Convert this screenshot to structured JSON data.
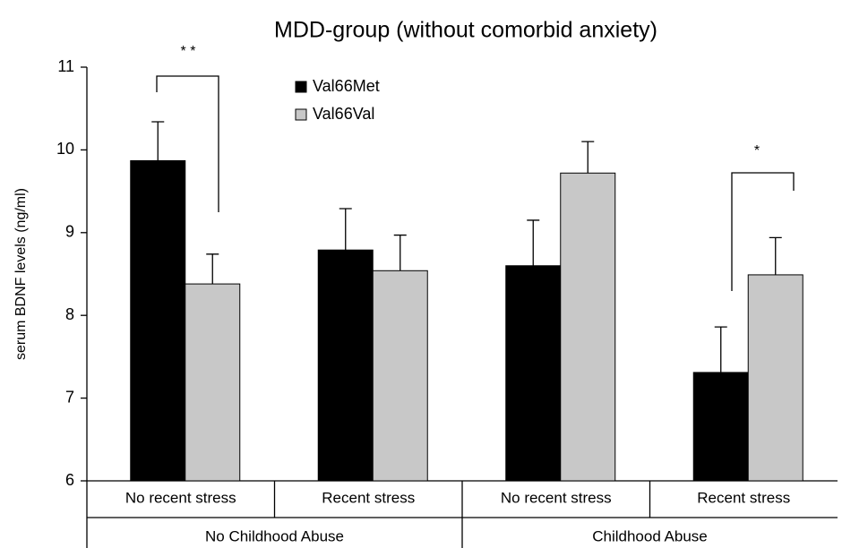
{
  "chart_data": {
    "type": "bar",
    "title": "MDD-group (without comorbid anxiety)",
    "y_label": "serum BDNF levels (ng/ml)",
    "categories": [
      "No recent stress",
      "Recent stress",
      "No recent stress",
      "Recent stress"
    ],
    "groups": [
      "No Childhood Abuse",
      "Childhood Abuse"
    ],
    "series": [
      {
        "name": "Val66Met",
        "color": "#000000",
        "values": [
          9.87,
          8.79,
          8.6,
          7.31
        ],
        "errors": [
          0.47,
          0.5,
          0.55,
          0.55
        ]
      },
      {
        "name": "Val66Val",
        "color": "#c8c8c8",
        "values": [
          8.38,
          8.54,
          9.72,
          8.49
        ],
        "errors": [
          0.36,
          0.43,
          0.38,
          0.45
        ]
      }
    ],
    "annotations": [
      "* *",
      "*"
    ],
    "ylim": [
      6,
      11
    ],
    "yticks": [
      6,
      7,
      8,
      9,
      10,
      11
    ],
    "grid": false,
    "legend": "top"
  }
}
